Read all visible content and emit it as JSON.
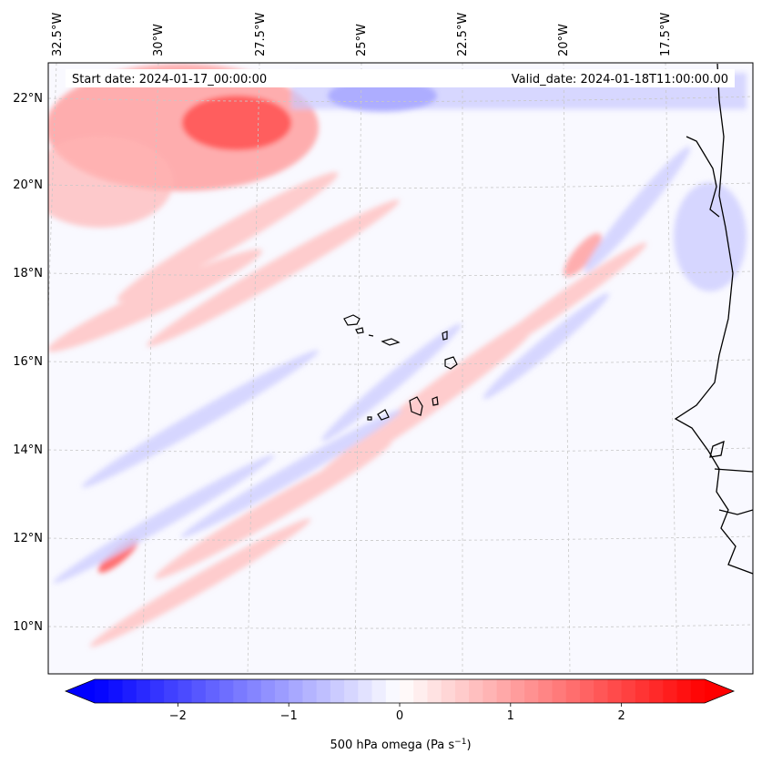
{
  "map": {
    "start_label": "Start date: 2024-01-17_00:00:00",
    "valid_label": "Valid_date: 2024-01-18T11:00:00.00",
    "lon_labels": [
      "32.5°W",
      "30°W",
      "27.5°W",
      "25°W",
      "22.5°W",
      "20°W",
      "17.5°W"
    ],
    "lat_labels": [
      "22°N",
      "20°N",
      "18°N",
      "16°N",
      "14°N",
      "12°N",
      "10°N"
    ]
  },
  "colorbar": {
    "label_prefix": "500 hPa omega (Pa s",
    "label_exp": "−1",
    "label_suffix": ")",
    "ticks": [
      "−2",
      "−1",
      "0",
      "1",
      "2"
    ],
    "tick_values": [
      -2,
      -1,
      0,
      1,
      2
    ],
    "range": [
      -2.75,
      2.75
    ],
    "colormap": "bwr",
    "colors": {
      "negative": "#0000ff",
      "zero": "#ffffff",
      "positive": "#ff0000"
    }
  }
}
